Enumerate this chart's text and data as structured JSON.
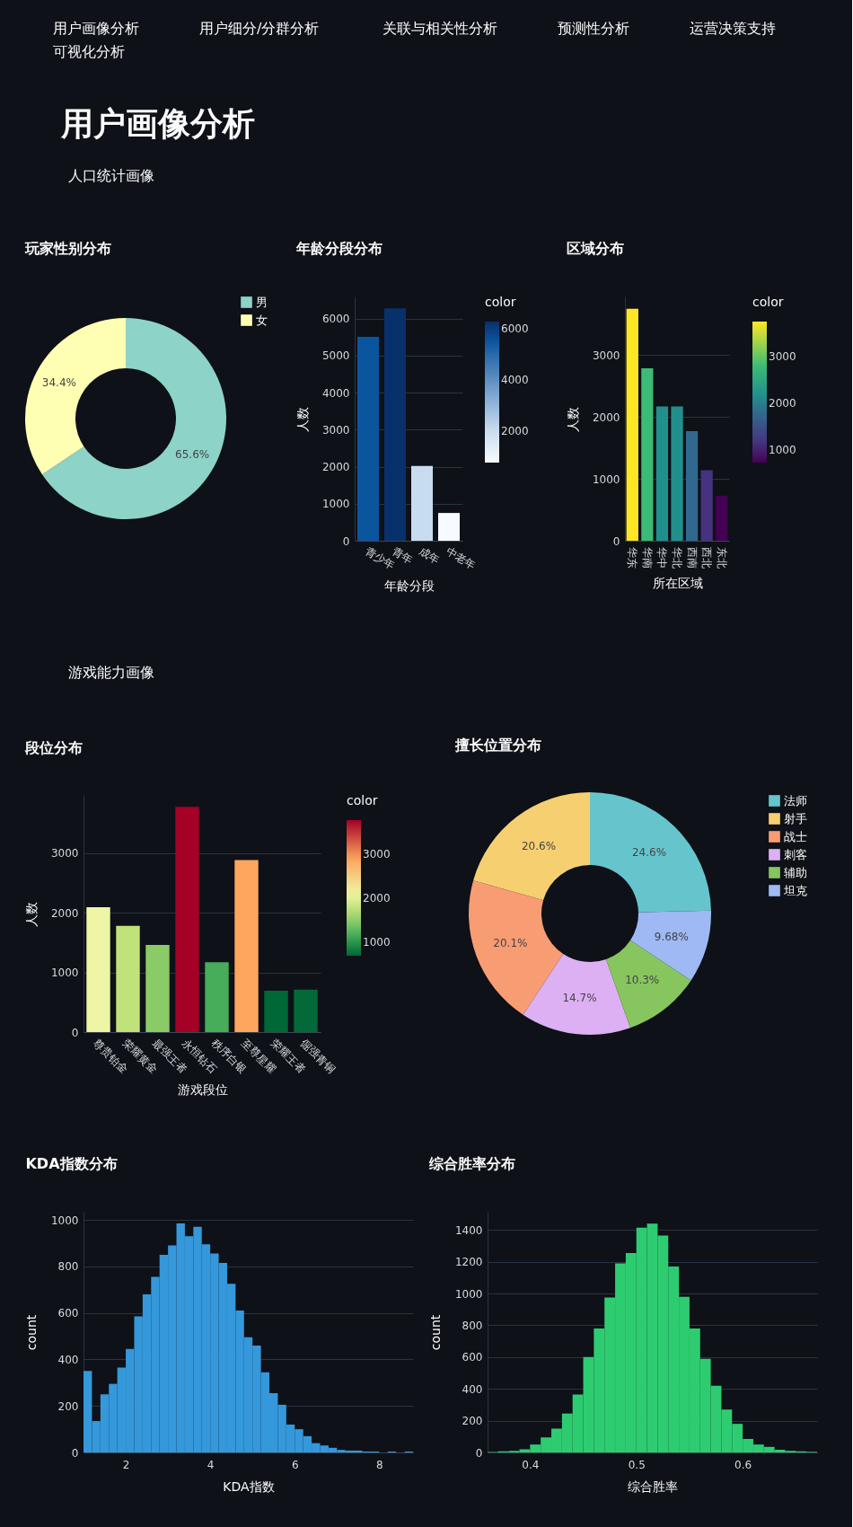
{
  "chart_data": [
    {
      "type": "other",
      "title": "用户画像分析",
      "annotations": [
        "用户画像分析",
        "用户细分/分群分析",
        "关联与相关性分析",
        "预测性分析",
        "运营决策支持",
        "可视化分析"
      ]
    },
    {
      "type": "other",
      "title": "人口统计画像"
    },
    {
      "type": "donut",
      "title": "玩家性别分布",
      "categories": [
        "男",
        "女"
      ],
      "values": [
        65.6,
        34.4
      ],
      "colors": [
        "#8dd3c7",
        "#ffffb3"
      ],
      "value_labels": [
        "65.6%",
        "34.4%"
      ],
      "legend": "top right"
    },
    {
      "type": "bar",
      "title": "年龄分段分布",
      "xlabel": "年龄分段",
      "ylabel": "人数",
      "categories": [
        "青少年",
        "青年",
        "成年",
        "中老年"
      ],
      "values": [
        5510,
        6280,
        2020,
        750
      ],
      "colors": [
        "#0b559f",
        "#08306b",
        "#c8dcf0",
        "#f7fbff"
      ],
      "clabel": "color",
      "clim": [
        750,
        6280
      ],
      "cticks": [
        2000,
        4000,
        6000
      ],
      "ylim": [
        0,
        6600
      ],
      "yticks": [
        0,
        1000,
        2000,
        3000,
        4000,
        5000,
        6000
      ],
      "grid": "y"
    },
    {
      "type": "bar",
      "title": "区域分布",
      "xlabel": "所在区域",
      "ylabel": "人数",
      "categories": [
        "华东",
        "华南",
        "华中",
        "华北",
        "西南",
        "西北",
        "东北"
      ],
      "values": [
        3750,
        2790,
        2170,
        2170,
        1770,
        1140,
        730
      ],
      "colors": [
        "#fde725",
        "#3bbb75",
        "#21908d",
        "#21908d",
        "#31688e",
        "#46327e",
        "#440154"
      ],
      "clabel": "color",
      "clim": [
        730,
        3750
      ],
      "cticks": [
        1000,
        2000,
        3000
      ],
      "ylim": [
        0,
        3950
      ],
      "yticks": [
        0,
        1000,
        2000,
        3000
      ],
      "grid": "y"
    },
    {
      "type": "other",
      "title": "游戏能力画像"
    },
    {
      "type": "bar",
      "title": "段位分布",
      "xlabel": "游戏段位",
      "ylabel": "人数",
      "categories": [
        "尊贵铂金",
        "荣耀黄金",
        "最强王者",
        "永恒钻石",
        "秩序白银",
        "至尊星耀",
        "荣耀王者",
        "倔强青铜"
      ],
      "values": [
        2090,
        1780,
        1460,
        3770,
        1170,
        2880,
        690,
        710
      ],
      "colors": [
        "#eef6a5",
        "#c1e27b",
        "#8acb67",
        "#a50026",
        "#48ad5b",
        "#fca65e",
        "#006837",
        "#016a38"
      ],
      "clabel": "color",
      "clim": [
        690,
        3770
      ],
      "cticks": [
        1000,
        2000,
        3000
      ],
      "ylim": [
        0,
        3970
      ],
      "yticks": [
        0,
        1000,
        2000,
        3000
      ],
      "grid": "y"
    },
    {
      "type": "donut",
      "title": "擅长位置分布",
      "categories": [
        "法师",
        "射手",
        "战士",
        "刺客",
        "辅助",
        "坦克"
      ],
      "values": [
        24.6,
        20.6,
        20.1,
        14.7,
        10.3,
        9.68
      ],
      "colors": [
        "#66c5cc",
        "#f6cf71",
        "#f89c74",
        "#dcb0f2",
        "#87c55f",
        "#9eb9f3"
      ],
      "value_labels": [
        "24.6%",
        "20.6%",
        "20.1%",
        "14.7%",
        "10.3%",
        "9.68%"
      ],
      "legend": "top right"
    },
    {
      "type": "histogram",
      "title": "KDA指数分布",
      "xlabel": "KDA指数",
      "ylabel": "count",
      "color": "#3498db",
      "bins": [
        1.0,
        1.2,
        1.4,
        1.6,
        1.8,
        2.0,
        2.2,
        2.4,
        2.6,
        2.8,
        3.0,
        3.2,
        3.4,
        3.6,
        3.8,
        4.0,
        4.2,
        4.4,
        4.6,
        4.8,
        5.0,
        5.2,
        5.4,
        5.6,
        5.8,
        6.0,
        6.2,
        6.4,
        6.6,
        6.8,
        7.0,
        7.2,
        7.4,
        7.6,
        7.8,
        8.0,
        8.2,
        8.4,
        8.6,
        8.8
      ],
      "values": [
        350,
        135,
        250,
        295,
        365,
        445,
        585,
        680,
        755,
        850,
        890,
        985,
        930,
        970,
        895,
        855,
        815,
        725,
        610,
        495,
        460,
        345,
        255,
        205,
        120,
        100,
        70,
        40,
        30,
        20,
        11,
        8,
        8,
        4,
        4,
        0,
        4,
        0,
        4
      ],
      "xlim": [
        1.0,
        8.8
      ],
      "xticks": [
        2,
        4,
        6,
        8
      ],
      "ylim": [
        0,
        1035
      ],
      "yticks": [
        0,
        200,
        400,
        600,
        800,
        1000
      ],
      "grid": "y"
    },
    {
      "type": "histogram",
      "title": "综合胜率分布",
      "xlabel": "综合胜率",
      "ylabel": "count",
      "color": "#2ecc71",
      "bins": [
        0.36,
        0.37,
        0.38,
        0.39,
        0.4,
        0.41,
        0.42,
        0.43,
        0.44,
        0.45,
        0.46,
        0.47,
        0.48,
        0.49,
        0.5,
        0.51,
        0.52,
        0.53,
        0.54,
        0.55,
        0.56,
        0.57,
        0.58,
        0.59,
        0.6,
        0.61,
        0.62,
        0.63,
        0.64,
        0.65,
        0.66,
        0.67
      ],
      "values": [
        3,
        7,
        10,
        20,
        50,
        95,
        150,
        245,
        365,
        600,
        780,
        975,
        1190,
        1255,
        1415,
        1440,
        1365,
        1170,
        980,
        780,
        590,
        420,
        270,
        180,
        85,
        50,
        35,
        17,
        10,
        7,
        4
      ],
      "xlim": [
        0.36,
        0.67
      ],
      "xticks": [
        0.4,
        0.5,
        0.6
      ],
      "ylim": [
        0,
        1515
      ],
      "yticks": [
        0,
        200,
        400,
        600,
        800,
        1000,
        1200,
        1400
      ],
      "grid": "y"
    }
  ]
}
